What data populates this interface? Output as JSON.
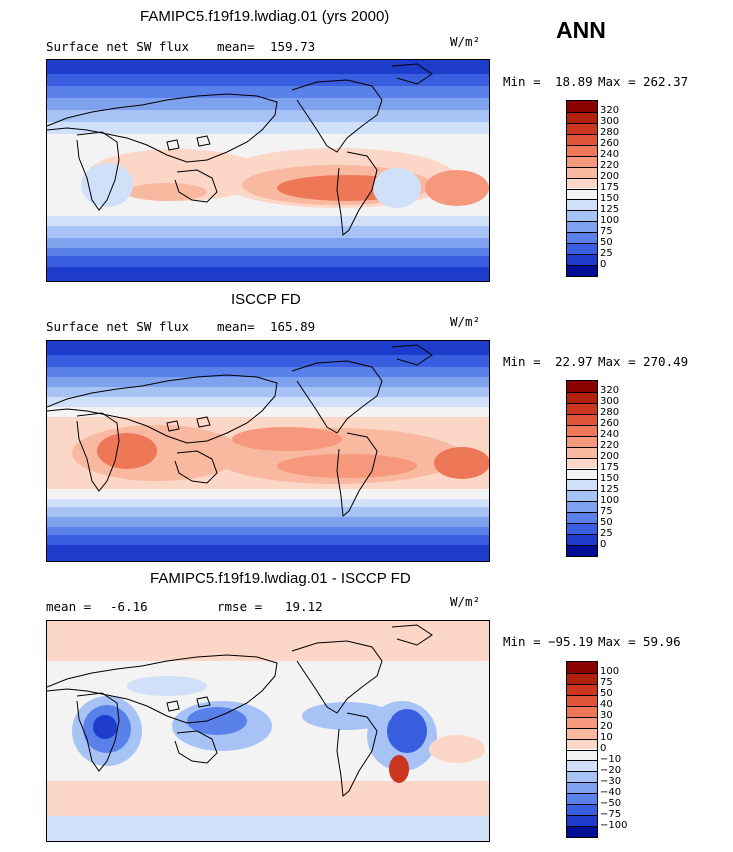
{
  "season": "ANN",
  "units": "W/m²",
  "panels": [
    {
      "id": "model",
      "title": "FAMIPC5.f19f19.lwdiag.01 (yrs 2000)",
      "left_label": "Surface net SW flux",
      "stat_label": "mean=",
      "stat_value": "159.73",
      "min_label": "Min =",
      "min_value": "18.89",
      "max_label": "Max =",
      "max_value": "262.37"
    },
    {
      "id": "obs",
      "title": "ISCCP FD",
      "left_label": "Surface net SW flux",
      "stat_label": "mean=",
      "stat_value": "165.89",
      "min_label": "Min =",
      "min_value": "22.97",
      "max_label": "Max =",
      "max_value": "270.49"
    },
    {
      "id": "diff",
      "title": "FAMIPC5.f19f19.lwdiag.01 - ISCCP FD",
      "left_label": "mean =",
      "left_value": "-6.16",
      "stat_label": "rmse =",
      "stat_value": "19.12",
      "min_label": "Min =",
      "min_value": "−95.19",
      "max_label": "Max =",
      "max_value": "59.96"
    }
  ],
  "flux_colorbar": {
    "labels": [
      "320",
      "300",
      "280",
      "260",
      "240",
      "220",
      "200",
      "175",
      "150",
      "125",
      "100",
      "75",
      "50",
      "25",
      "0"
    ],
    "colors": [
      "#8b0000",
      "#b2200e",
      "#cc3520",
      "#e0553a",
      "#ee7757",
      "#f6987c",
      "#f9b8a0",
      "#fcd6c6",
      "#f3f3f3",
      "#cfe0f8",
      "#a7c3f5",
      "#7fa2ef",
      "#5a81ea",
      "#3a5ee0",
      "#1d3ccc",
      "#000f96"
    ]
  },
  "diff_colorbar": {
    "labels": [
      "100",
      "75",
      "50",
      "40",
      "30",
      "20",
      "10",
      "0",
      "−10",
      "−20",
      "−30",
      "−40",
      "−50",
      "−75",
      "−100"
    ],
    "colors": [
      "#8b0000",
      "#b2200e",
      "#cc3520",
      "#e0553a",
      "#ee7757",
      "#f6987c",
      "#f9b8a0",
      "#fcd6c6",
      "#f3f3f3",
      "#cfe0f8",
      "#a7c3f5",
      "#7fa2ef",
      "#5a81ea",
      "#3a5ee0",
      "#1d3ccc",
      "#000f96"
    ]
  },
  "colors": {
    "deep_blue": "#1d3ccc",
    "mid_blue": "#5a81ea",
    "light_blue": "#cfe0f8",
    "neutral": "#f3f3f3",
    "light_red": "#f9b8a0",
    "mid_red": "#ee7757",
    "deep_red": "#cc3520"
  }
}
